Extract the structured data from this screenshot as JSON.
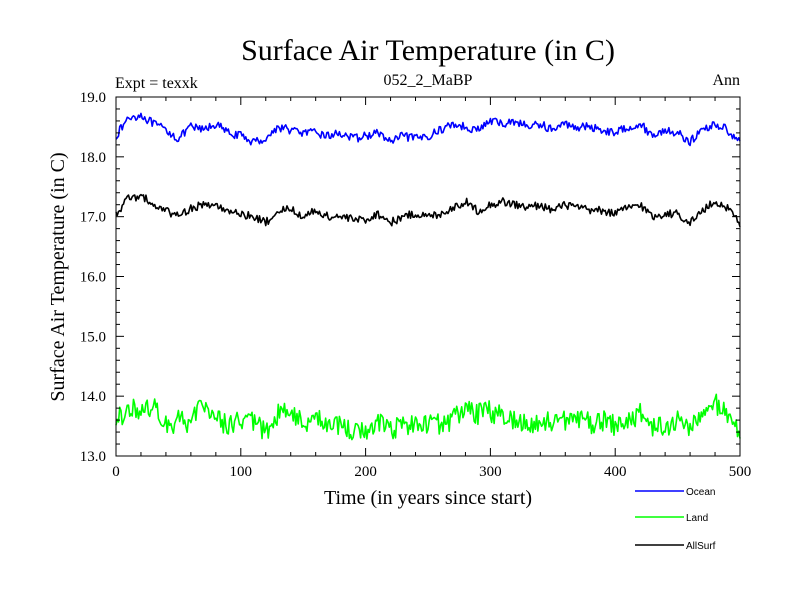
{
  "chart_data": {
    "type": "line",
    "title": "Surface Air Temperature (in C)",
    "subtitle_left": "Expt = texxk",
    "subtitle_center": "052_2_MaBP",
    "subtitle_right": "Ann",
    "xlabel": "Time (in years since start)",
    "ylabel": "Surface Air Temperature (in C)",
    "xlim": [
      0,
      500
    ],
    "ylim": [
      13.0,
      19.0
    ],
    "xticks": [
      0,
      100,
      200,
      300,
      400,
      500
    ],
    "yticks": [
      13.0,
      14.0,
      15.0,
      16.0,
      17.0,
      18.0,
      19.0
    ],
    "xtick_labels": [
      "0",
      "100",
      "200",
      "300",
      "400",
      "500"
    ],
    "ytick_labels": [
      "13.0",
      "14.0",
      "15.0",
      "16.0",
      "17.0",
      "18.0",
      "19.0"
    ],
    "grid": false,
    "legend_position": "bottom-right, outside plot",
    "x_step": 10,
    "series": [
      {
        "name": "Ocean",
        "color": "#0000ff",
        "values": [
          18.35,
          18.65,
          18.7,
          18.55,
          18.45,
          18.3,
          18.5,
          18.45,
          18.55,
          18.4,
          18.35,
          18.25,
          18.3,
          18.5,
          18.45,
          18.4,
          18.4,
          18.35,
          18.4,
          18.3,
          18.35,
          18.4,
          18.25,
          18.35,
          18.3,
          18.35,
          18.45,
          18.55,
          18.5,
          18.45,
          18.6,
          18.55,
          18.6,
          18.5,
          18.55,
          18.45,
          18.55,
          18.5,
          18.5,
          18.45,
          18.4,
          18.5,
          18.55,
          18.35,
          18.45,
          18.4,
          18.25,
          18.45,
          18.55,
          18.45,
          18.25
        ]
      },
      {
        "name": "Land",
        "color": "#00ff00",
        "values": [
          13.55,
          13.85,
          13.7,
          13.85,
          13.5,
          13.6,
          13.55,
          13.9,
          13.65,
          13.5,
          13.6,
          13.55,
          13.4,
          13.7,
          13.75,
          13.55,
          13.65,
          13.5,
          13.5,
          13.45,
          13.4,
          13.55,
          13.45,
          13.5,
          13.6,
          13.5,
          13.55,
          13.6,
          13.8,
          13.7,
          13.75,
          13.65,
          13.6,
          13.55,
          13.55,
          13.6,
          13.6,
          13.65,
          13.55,
          13.6,
          13.5,
          13.6,
          13.7,
          13.5,
          13.45,
          13.6,
          13.5,
          13.65,
          13.9,
          13.7,
          13.4
        ]
      },
      {
        "name": "AllSurf",
        "color": "#000000",
        "values": [
          17.05,
          17.3,
          17.35,
          17.2,
          17.1,
          17.0,
          17.15,
          17.2,
          17.2,
          17.05,
          17.05,
          17.0,
          16.9,
          17.1,
          17.15,
          17.0,
          17.1,
          17.0,
          17.0,
          16.95,
          16.95,
          17.05,
          16.9,
          17.0,
          17.05,
          17.0,
          17.05,
          17.15,
          17.25,
          17.1,
          17.2,
          17.25,
          17.2,
          17.15,
          17.2,
          17.1,
          17.2,
          17.15,
          17.1,
          17.1,
          17.05,
          17.15,
          17.2,
          17.0,
          17.05,
          17.05,
          16.9,
          17.1,
          17.25,
          17.15,
          16.9
        ]
      }
    ]
  }
}
